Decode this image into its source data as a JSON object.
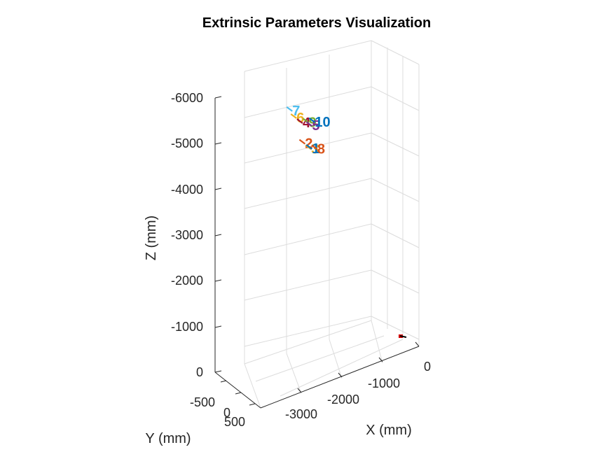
{
  "chart_data": {
    "type": "scatter",
    "title": "Extrinsic Parameters Visualization",
    "xlabel": "X (mm)",
    "ylabel": "Y (mm)",
    "zlabel": "Z (mm)",
    "grid": true,
    "x_ticks": [
      "-3000",
      "-2000",
      "-1000",
      "0"
    ],
    "y_ticks": [
      "-500",
      "0",
      "500"
    ],
    "z_ticks": [
      "-6000",
      "-5000",
      "-4000",
      "-3000",
      "-2000",
      "-1000",
      "0"
    ],
    "views": [
      {
        "label": "7",
        "color": "#4DBEEE",
        "z": -6020,
        "x": -2900,
        "y": -350
      },
      {
        "label": "6",
        "color": "#EDB120",
        "z": -5780,
        "x": -2750,
        "y": -300
      },
      {
        "label": "4",
        "color": "#A2142F",
        "z": -5620,
        "x": -2600,
        "y": -300
      },
      {
        "label": "9",
        "color": "#77AC30",
        "z": -5580,
        "x": -2450,
        "y": -300
      },
      {
        "label": "5",
        "color": "#7E2F8E",
        "z": -5460,
        "x": -2350,
        "y": -280
      },
      {
        "label": "10",
        "color": "#0072BD",
        "z": -5540,
        "x": -2300,
        "y": -300
      },
      {
        "label": "2",
        "color": "#D95319",
        "z": -5000,
        "x": -2400,
        "y": -150
      },
      {
        "label": "3",
        "color": "#EDB120",
        "z": -4830,
        "x": -2250,
        "y": -150
      },
      {
        "label": "1",
        "color": "#0072BD",
        "z": -4830,
        "x": -2230,
        "y": -150
      },
      {
        "label": "8",
        "color": "#D95319",
        "z": -4780,
        "x": -2100,
        "y": -150
      }
    ]
  }
}
